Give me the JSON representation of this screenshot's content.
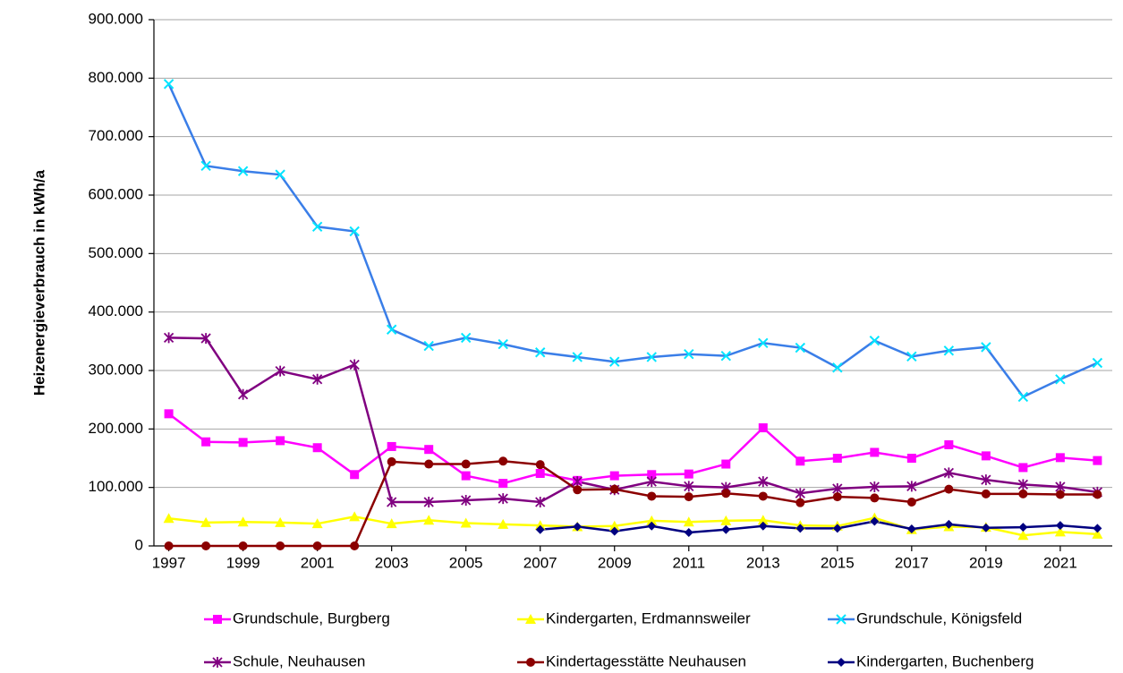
{
  "chart_data": {
    "type": "line",
    "y_label": "Heizenergieverbrauch in kWh/a",
    "x": [
      1997,
      1998,
      1999,
      2000,
      2001,
      2002,
      2003,
      2004,
      2005,
      2006,
      2007,
      2008,
      2009,
      2010,
      2011,
      2012,
      2013,
      2014,
      2015,
      2016,
      2017,
      2018,
      2019,
      2020,
      2021,
      2022
    ],
    "xlim": [
      1996.6,
      2022.4
    ],
    "xticks": [
      1997,
      1999,
      2001,
      2003,
      2005,
      2007,
      2009,
      2011,
      2013,
      2015,
      2017,
      2019,
      2021
    ],
    "ylim": [
      0,
      900000
    ],
    "yticks": [
      0,
      {
        "value": 100000,
        "label": "100.000"
      },
      {
        "value": 200000,
        "label": "200.000"
      },
      {
        "value": 300000,
        "label": "300.000"
      },
      {
        "value": 400000,
        "label": "400.000"
      },
      {
        "value": 500000,
        "label": "500.000"
      },
      {
        "value": 600000,
        "label": "600.000"
      },
      {
        "value": 700000,
        "label": "700.000"
      },
      {
        "value": 800000,
        "label": "800.000"
      },
      {
        "value": 900000,
        "label": "900.000"
      }
    ],
    "grid": true,
    "legend": "bottom",
    "series": [
      {
        "name": "Grundschule, Burgberg",
        "color": "#ff00ff",
        "line_color": "#ff00ff",
        "marker": "square",
        "values": [
          226000,
          178000,
          177000,
          180000,
          168000,
          122000,
          170000,
          165000,
          120000,
          107000,
          124000,
          112000,
          120000,
          122000,
          123000,
          140000,
          202000,
          145000,
          150000,
          160000,
          150000,
          173000,
          154000,
          134000,
          151000,
          146000
        ]
      },
      {
        "name": "Kindergarten, Erdmannsweiler",
        "color": "#ffff00",
        "line_color": "#ffff00",
        "marker": "triangle",
        "values": [
          47000,
          40000,
          41000,
          40000,
          38000,
          50000,
          38000,
          44000,
          39000,
          37000,
          35000,
          33000,
          34000,
          43000,
          41000,
          43000,
          44000,
          35000,
          34000,
          48000,
          28000,
          33000,
          32000,
          18000,
          24000,
          20000
        ]
      },
      {
        "name": "Grundschule, Königsfeld",
        "color": "#00e5ff",
        "line_color": "#3a7ee8",
        "marker": "x",
        "values": [
          790000,
          650000,
          641000,
          635000,
          546000,
          538000,
          370000,
          342000,
          356000,
          345000,
          331000,
          323000,
          315000,
          323000,
          328000,
          325000,
          347000,
          339000,
          305000,
          351000,
          324000,
          334000,
          340000,
          255000,
          285000,
          313000
        ]
      },
      {
        "name": "Schule, Neuhausen",
        "color": "#800080",
        "line_color": "#800080",
        "marker": "asterisk",
        "values": [
          356000,
          355000,
          259000,
          299000,
          285000,
          310000,
          75000,
          75000,
          78000,
          81000,
          75000,
          110000,
          96000,
          110000,
          102000,
          100000,
          110000,
          90000,
          98000,
          101000,
          102000,
          125000,
          113000,
          105000,
          101000,
          92000
        ]
      },
      {
        "name": "Kindertagesstätte Neuhausen",
        "color": "#8b0000",
        "line_color": "#8b0000",
        "marker": "circle",
        "values": [
          0,
          0,
          0,
          0,
          0,
          0,
          144000,
          140000,
          140000,
          145000,
          139000,
          96000,
          97000,
          85000,
          84000,
          90000,
          85000,
          74000,
          84000,
          82000,
          75000,
          97000,
          89000,
          89000,
          88000,
          88000
        ]
      },
      {
        "name": "Kindergarten, Buchenberg",
        "color": "#000080",
        "line_color": "#000080",
        "marker": "diamond",
        "values": [
          null,
          null,
          null,
          null,
          null,
          null,
          null,
          null,
          null,
          null,
          28000,
          33000,
          25000,
          34000,
          23000,
          28000,
          34000,
          30000,
          30000,
          42000,
          29000,
          37000,
          31000,
          32000,
          35000,
          30000
        ]
      }
    ]
  }
}
